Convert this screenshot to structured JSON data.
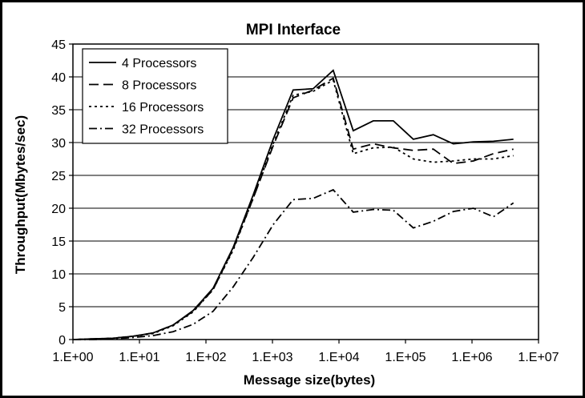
{
  "chart_data": {
    "type": "line",
    "title": "MPI Interface",
    "xlabel": "Message size(bytes)",
    "ylabel": "Throughput(Mbytes/sec)",
    "x_scale": "log10",
    "xlim": [
      1,
      10000000
    ],
    "ylim": [
      0,
      45
    ],
    "y_ticks": [
      0,
      5,
      10,
      15,
      20,
      25,
      30,
      35,
      40,
      45
    ],
    "x_tick_labels": [
      "1.E+00",
      "1.E+01",
      "1.E+02",
      "1.E+03",
      "1.E+04",
      "1.E+05",
      "1.E+06",
      "1.E+07"
    ],
    "x": [
      1,
      2,
      4,
      8,
      16,
      32,
      64,
      128,
      256,
      512,
      1024,
      2048,
      4096,
      8192,
      16384,
      32768,
      65536,
      131072,
      262144,
      524288,
      1048576,
      2097152,
      4194304
    ],
    "series": [
      {
        "name": "4 Processors",
        "dash": "solid",
        "values": [
          0.0,
          0.1,
          0.2,
          0.5,
          1.0,
          2.2,
          4.4,
          7.8,
          14.0,
          22.0,
          30.5,
          38.0,
          38.2,
          41.0,
          31.8,
          33.3,
          33.3,
          30.5,
          31.2,
          29.8,
          30.1,
          30.2,
          30.5
        ]
      },
      {
        "name": "8 Processors",
        "dash": "long-dash",
        "values": [
          0.0,
          0.1,
          0.2,
          0.5,
          1.0,
          2.2,
          4.3,
          7.6,
          13.8,
          21.5,
          29.5,
          36.8,
          38.0,
          39.8,
          29.0,
          29.8,
          29.2,
          28.8,
          29.0,
          26.8,
          27.2,
          28.3,
          29.0
        ]
      },
      {
        "name": "16 Processors",
        "dash": "dotted",
        "values": [
          0.0,
          0.1,
          0.2,
          0.5,
          0.9,
          2.1,
          4.2,
          7.6,
          13.6,
          21.5,
          29.8,
          37.2,
          37.8,
          39.5,
          28.3,
          29.2,
          29.3,
          27.5,
          27.0,
          27.2,
          27.5,
          27.5,
          28.0
        ]
      },
      {
        "name": "32 Processors",
        "dash": "dash-dot",
        "values": [
          0.0,
          0.0,
          0.1,
          0.3,
          0.6,
          1.2,
          2.3,
          4.3,
          8.0,
          12.5,
          17.5,
          21.3,
          21.5,
          22.8,
          19.4,
          19.8,
          19.7,
          17.0,
          18.0,
          19.5,
          20.0,
          18.7,
          20.8
        ]
      }
    ],
    "grid": "horizontal",
    "legend_position": "top-left"
  }
}
